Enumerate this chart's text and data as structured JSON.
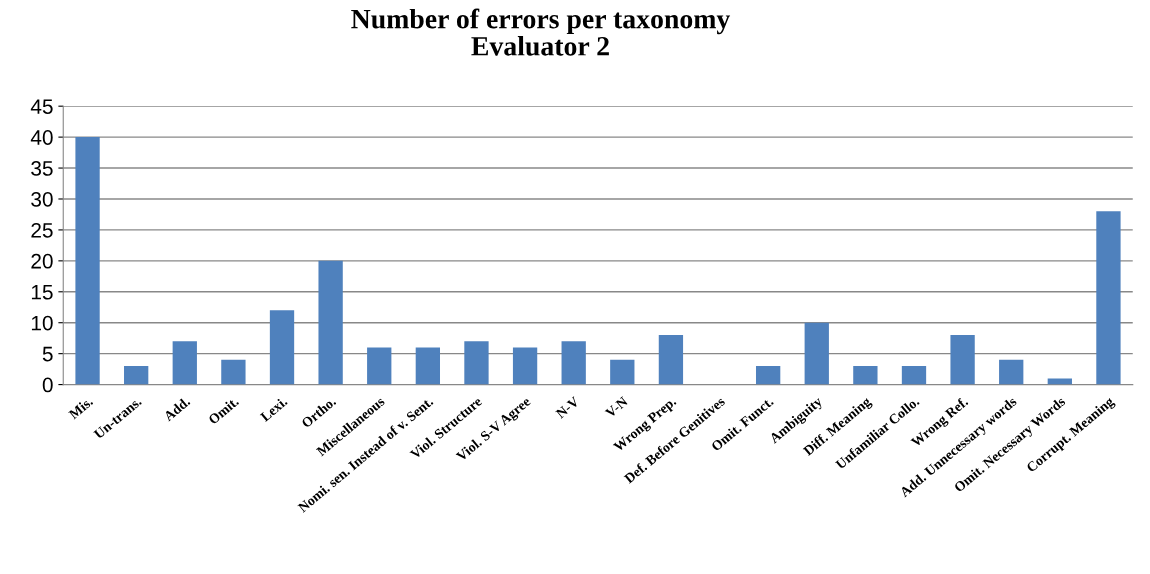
{
  "chart_data": {
    "type": "bar",
    "title": "Number of errors per taxonomy\nEvaluator 2",
    "categories": [
      "Mis.",
      "Un-trans.",
      "Add.",
      "Omit.",
      "Lexi.",
      "Ortho.",
      "Miscellaneous",
      "Nomi. sen. Instead of v. Sent.",
      "Viol. Structure",
      "Viol. S-V Agree",
      "N-V",
      "V-N",
      "Wrong Prep.",
      "Def. Before Genitives",
      "Omit. Funct.",
      "Ambiguity",
      "Diff. Meaning",
      "Unfamiliar Collo.",
      "Wrong Ref.",
      "Add. Unnecessary words",
      "Omit. Necessary Words",
      "Corrupt. Meaning"
    ],
    "values": [
      40,
      3,
      7,
      4,
      12,
      20,
      6,
      6,
      7,
      6,
      7,
      4,
      8,
      0,
      3,
      10,
      3,
      3,
      8,
      4,
      1,
      28
    ],
    "color": "#4f81bd",
    "ylim": [
      0,
      45
    ],
    "yticks": [
      0,
      5,
      10,
      15,
      20,
      25,
      30,
      35,
      40,
      45
    ],
    "grid": "y",
    "legend": false
  }
}
